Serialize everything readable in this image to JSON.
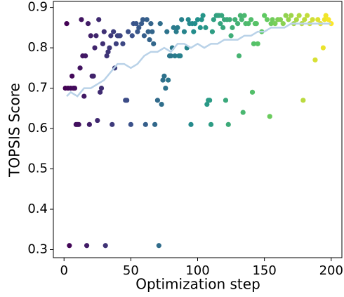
{
  "chart_data": {
    "type": "scatter",
    "xlabel": "Optimization step",
    "ylabel": "TOPSIS Score",
    "xlim": [
      -8,
      208
    ],
    "ylim": [
      0.28,
      0.915
    ],
    "xticks": [
      0,
      50,
      100,
      150,
      200
    ],
    "yticks": [
      0.3,
      0.4,
      0.5,
      0.6,
      0.7,
      0.8,
      0.9
    ],
    "colormap": [
      "#440154",
      "#3b528b",
      "#21918c",
      "#5ec962",
      "#fde725"
    ],
    "x": [
      2,
      1,
      3,
      4,
      5,
      6,
      7,
      8,
      9,
      10,
      11,
      12,
      13,
      14,
      15,
      16,
      17,
      18,
      19,
      20,
      21,
      22,
      23,
      24,
      25,
      26,
      27,
      28,
      29,
      30,
      31,
      32,
      33,
      34,
      35,
      36,
      37,
      38,
      39,
      40,
      41,
      42,
      44,
      46,
      47,
      48,
      50,
      51,
      52,
      54,
      55,
      56,
      58,
      59,
      60,
      61,
      62,
      63,
      64,
      65,
      66,
      67,
      68,
      70,
      71,
      72,
      73,
      74,
      75,
      76,
      77,
      78,
      79,
      80,
      81,
      82,
      83,
      84,
      85,
      86,
      87,
      88,
      90,
      92,
      93,
      94,
      95,
      96,
      97,
      98,
      100,
      102,
      103,
      104,
      106,
      107,
      108,
      109,
      110,
      111,
      112,
      114,
      115,
      116,
      117,
      118,
      119,
      120,
      121,
      122,
      123,
      124,
      125,
      126,
      128,
      130,
      131,
      132,
      133,
      134,
      135,
      136,
      138,
      140,
      141,
      142,
      143,
      144,
      145,
      148,
      150,
      152,
      154,
      155,
      156,
      158,
      160,
      162,
      164,
      166,
      168,
      170,
      172,
      174,
      176,
      178,
      179,
      180,
      182,
      184,
      186,
      188,
      190,
      192,
      194,
      195,
      196,
      198,
      200
    ],
    "values": [
      0.86,
      0.7,
      0.7,
      0.31,
      0.7,
      0.73,
      0.7,
      0.7,
      0.61,
      0.61,
      0.61,
      0.75,
      0.87,
      0.78,
      0.68,
      0.78,
      0.31,
      0.86,
      0.61,
      0.83,
      0.73,
      0.73,
      0.8,
      0.83,
      0.62,
      0.87,
      0.69,
      0.7,
      0.81,
      0.84,
      0.31,
      0.78,
      0.79,
      0.8,
      0.83,
      0.61,
      0.84,
      0.75,
      0.81,
      0.83,
      0.83,
      0.83,
      0.81,
      0.67,
      0.67,
      0.84,
      0.61,
      0.83,
      0.86,
      0.86,
      0.84,
      0.85,
      0.86,
      0.87,
      0.83,
      0.61,
      0.87,
      0.84,
      0.82,
      0.86,
      0.84,
      0.81,
      0.61,
      0.67,
      0.31,
      0.86,
      0.66,
      0.72,
      0.73,
      0.7,
      0.84,
      0.72,
      0.78,
      0.78,
      0.8,
      0.85,
      0.78,
      0.84,
      0.85,
      0.78,
      0.78,
      0.87,
      0.84,
      0.8,
      0.87,
      0.86,
      0.61,
      0.86,
      0.84,
      0.86,
      0.87,
      0.85,
      0.87,
      0.88,
      0.85,
      0.66,
      0.67,
      0.67,
      0.61,
      0.84,
      0.87,
      0.88,
      0.88,
      0.88,
      0.86,
      0.88,
      0.85,
      0.87,
      0.67,
      0.87,
      0.61,
      0.87,
      0.83,
      0.85,
      0.87,
      0.86,
      0.78,
      0.88,
      0.87,
      0.64,
      0.88,
      0.86,
      0.86,
      0.87,
      0.69,
      0.81,
      0.86,
      0.86,
      0.81,
      0.84,
      0.88,
      0.87,
      0.63,
      0.86,
      0.87,
      0.86,
      0.87,
      0.87,
      0.86,
      0.88,
      0.87,
      0.88,
      0.86,
      0.87,
      0.88,
      0.86,
      0.67,
      0.87,
      0.88,
      0.86,
      0.87,
      0.77,
      0.87,
      0.86,
      0.8,
      0.87,
      0.88,
      0.87,
      0.86
    ],
    "trend": {
      "color": "#b9d2e8",
      "x": [
        2,
        5,
        10,
        15,
        20,
        25,
        30,
        35,
        40,
        45,
        50,
        55,
        60,
        65,
        70,
        75,
        80,
        85,
        90,
        95,
        100,
        105,
        110,
        115,
        120,
        125,
        130,
        135,
        140,
        145,
        150,
        155,
        160,
        165,
        170,
        175,
        180,
        185,
        190,
        195,
        200
      ],
      "values": [
        0.68,
        0.69,
        0.68,
        0.7,
        0.7,
        0.71,
        0.72,
        0.74,
        0.76,
        0.76,
        0.75,
        0.76,
        0.78,
        0.79,
        0.79,
        0.8,
        0.79,
        0.81,
        0.81,
        0.8,
        0.81,
        0.8,
        0.81,
        0.81,
        0.82,
        0.82,
        0.82,
        0.83,
        0.83,
        0.84,
        0.84,
        0.85,
        0.85,
        0.85,
        0.86,
        0.86,
        0.86,
        0.86,
        0.86,
        0.86,
        0.86
      ]
    }
  }
}
